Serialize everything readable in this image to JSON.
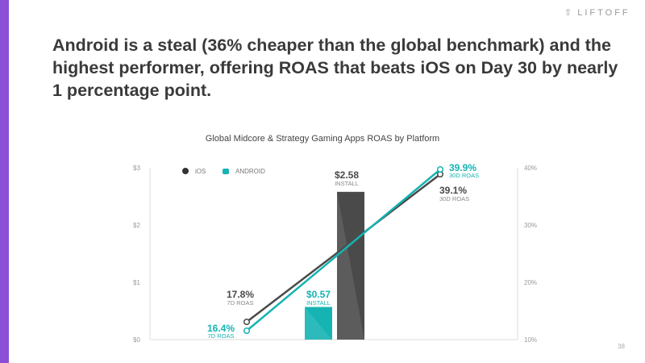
{
  "logo": "LIFTOFF",
  "headline": "Android is a steal (36% cheaper than the global benchmark) and the highest performer, offering ROAS that beats iOS on Day 30 by nearly 1 percentage point.",
  "page_number": "38",
  "colors": {
    "ios": "#4a4a4a",
    "android": "#16b3b3",
    "accent": "#8a4fd6"
  },
  "chart_data": {
    "type": "bar+line",
    "title": "Global Midcore & Strategy Gaming Apps ROAS by Platform",
    "legend": [
      {
        "name": "iOS",
        "icon": "apple-icon"
      },
      {
        "name": "ANDROID",
        "icon": "android-icon"
      }
    ],
    "legend_placement": "top-left",
    "left_axis": {
      "ticks": [
        "$0",
        "$1",
        "$2",
        "$3"
      ],
      "range": [
        0,
        3
      ]
    },
    "right_axis": {
      "ticks": [
        "10%",
        "20%",
        "30%",
        "40%"
      ],
      "range": [
        10,
        40
      ]
    },
    "bars": [
      {
        "series": "Android",
        "value": 0.57,
        "label": "$0.57",
        "sublabel": "INSTALL"
      },
      {
        "series": "iOS",
        "value": 2.58,
        "label": "$2.58",
        "sublabel": "INSTALL"
      }
    ],
    "lines": [
      {
        "series": "iOS",
        "points": [
          {
            "x": "7D",
            "value": 17.8,
            "label": "17.8%",
            "sublabel": "7D ROAS"
          },
          {
            "x": "30D",
            "value": 39.1,
            "label": "39.1%",
            "sublabel": "30D ROAS"
          }
        ]
      },
      {
        "series": "Android",
        "points": [
          {
            "x": "7D",
            "value": 16.4,
            "label": "16.4%",
            "sublabel": "7D ROAS"
          },
          {
            "x": "30D",
            "value": 39.9,
            "label": "39.9%",
            "sublabel": "30D ROAS"
          }
        ]
      }
    ]
  }
}
